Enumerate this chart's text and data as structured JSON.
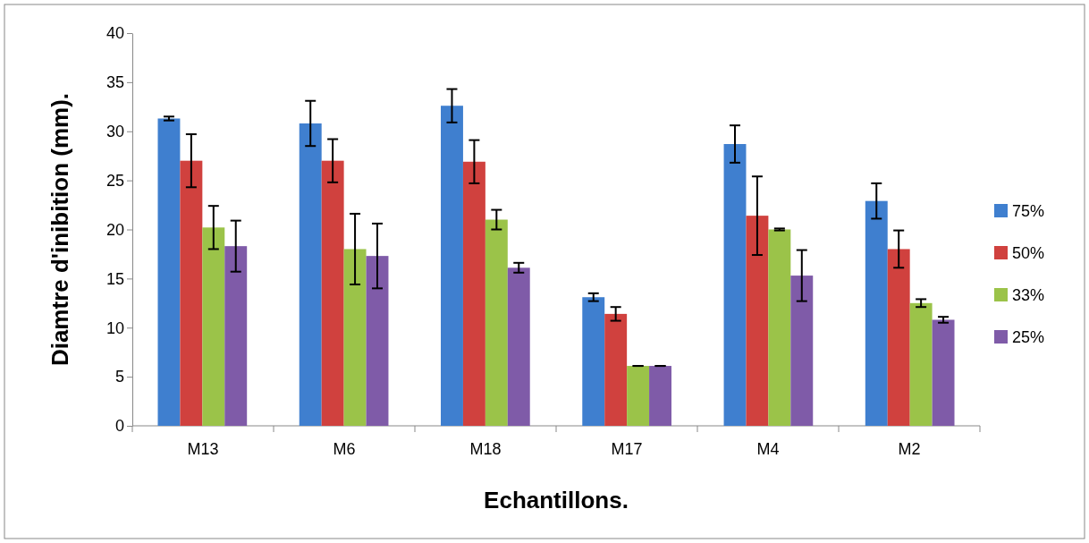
{
  "chart_data": {
    "type": "bar",
    "xlabel": "Echantillons.",
    "ylabel": "Diamtre d'inibition (mm).",
    "categories": [
      "M13",
      "M6",
      "M18",
      "M17",
      "M4",
      "M2"
    ],
    "series": [
      {
        "name": "75%",
        "color": "#3f7fcf",
        "values": [
          31.3,
          30.8,
          32.6,
          13.1,
          28.7,
          22.9
        ],
        "errors": [
          0.2,
          2.3,
          1.7,
          0.4,
          1.9,
          1.8
        ]
      },
      {
        "name": "50%",
        "color": "#d0413e",
        "values": [
          27.0,
          27.0,
          26.9,
          11.4,
          21.4,
          18.0
        ],
        "errors": [
          2.7,
          2.2,
          2.2,
          0.7,
          4.0,
          1.9
        ]
      },
      {
        "name": "33%",
        "color": "#9bc349",
        "values": [
          20.2,
          18.0,
          21.0,
          6.1,
          20.0,
          12.5
        ],
        "errors": [
          2.2,
          3.6,
          1.0,
          0,
          0.1,
          0.4
        ]
      },
      {
        "name": "25%",
        "color": "#7f5ba8",
        "values": [
          18.3,
          17.3,
          16.1,
          6.1,
          15.3,
          10.8
        ],
        "errors": [
          2.6,
          3.3,
          0.5,
          0,
          2.6,
          0.3
        ]
      }
    ],
    "ylim": [
      0,
      40
    ],
    "yticks": [
      0,
      5,
      10,
      15,
      20,
      25,
      30,
      35,
      40
    ],
    "legend": "right"
  }
}
